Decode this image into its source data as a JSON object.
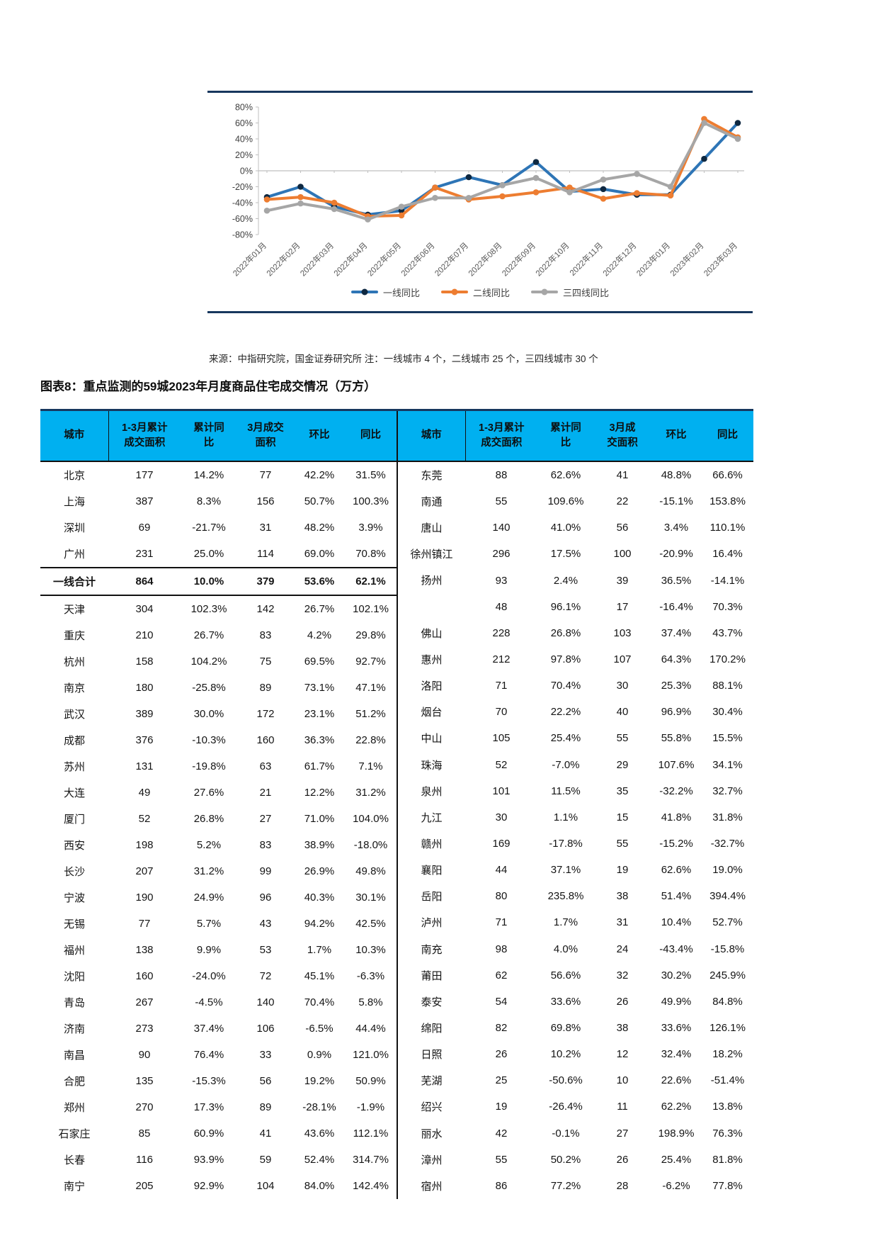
{
  "figure": {
    "source_note": "来源：中指研究院，国金证券研究所 注：一线城市 4 个，二线城市 25 个，三四线城市 30 个"
  },
  "chart_data": {
    "type": "line",
    "x": [
      "2022年01月",
      "2022年02月",
      "2022年03月",
      "2022年04月",
      "2022年05月",
      "2022年06月",
      "2022年07月",
      "2022年08月",
      "2022年09月",
      "2022年10月",
      "2022年11月",
      "2022年12月",
      "2023年01月",
      "2023年02月",
      "2023年03月"
    ],
    "series": [
      {
        "name": "一线同比",
        "color": "#2E75B6",
        "marker": "#0E2841",
        "values": [
          -33,
          -20,
          -45,
          -55,
          -50,
          -21,
          -8,
          -18,
          11,
          -26,
          -23,
          -30,
          -30,
          15,
          60
        ]
      },
      {
        "name": "二线同比",
        "color": "#ED7D31",
        "marker": "#ED7D31",
        "values": [
          -36,
          -33,
          -40,
          -57,
          -56,
          -21,
          -36,
          -32,
          -27,
          -21,
          -35,
          -28,
          -31,
          65,
          42
        ]
      },
      {
        "name": "三四线同比",
        "color": "#A6A6A6",
        "marker": "#A6A6A6",
        "values": [
          -50,
          -41,
          -48,
          -61,
          -45,
          -34,
          -34,
          -18,
          -9,
          -27,
          -11,
          -4,
          -20,
          60,
          40
        ]
      }
    ],
    "ylim": [
      -80,
      80
    ],
    "ytick_step": 20,
    "ytick_suffix": "%",
    "grid": false,
    "legend_position": "bottom"
  },
  "table": {
    "title": "图表8：重点监测的59城2023年月度商品住宅成交情况（万方）",
    "left_headers": [
      "城市",
      "1-3月累计\n成交面积",
      "累计同\n比",
      "3月成交\n面积",
      "环比",
      "同比"
    ],
    "right_headers": [
      "城市",
      "1-3月累计\n成交面积",
      "累计同\n比",
      "3月成\n交面积",
      "环比",
      "同比"
    ],
    "left_rows": [
      [
        "北京",
        "177",
        "14.2%",
        "77",
        "42.2%",
        "31.5%"
      ],
      [
        "上海",
        "387",
        "8.3%",
        "156",
        "50.7%",
        "100.3%"
      ],
      [
        "深圳",
        "69",
        "-21.7%",
        "31",
        "48.2%",
        "3.9%"
      ],
      [
        "广州",
        "231",
        "25.0%",
        "114",
        "69.0%",
        "70.8%"
      ],
      [
        "一线合计",
        "864",
        "10.0%",
        "379",
        "53.6%",
        "62.1%"
      ],
      [
        "天津",
        "304",
        "102.3%",
        "142",
        "26.7%",
        "102.1%"
      ],
      [
        "重庆",
        "210",
        "26.7%",
        "83",
        "4.2%",
        "29.8%"
      ],
      [
        "杭州",
        "158",
        "104.2%",
        "75",
        "69.5%",
        "92.7%"
      ],
      [
        "南京",
        "180",
        "-25.8%",
        "89",
        "73.1%",
        "47.1%"
      ],
      [
        "武汉",
        "389",
        "30.0%",
        "172",
        "23.1%",
        "51.2%"
      ],
      [
        "成都",
        "376",
        "-10.3%",
        "160",
        "36.3%",
        "22.8%"
      ],
      [
        "苏州",
        "131",
        "-19.8%",
        "63",
        "61.7%",
        "7.1%"
      ],
      [
        "大连",
        "49",
        "27.6%",
        "21",
        "12.2%",
        "31.2%"
      ],
      [
        "厦门",
        "52",
        "26.8%",
        "27",
        "71.0%",
        "104.0%"
      ],
      [
        "西安",
        "198",
        "5.2%",
        "83",
        "38.9%",
        "-18.0%"
      ],
      [
        "长沙",
        "207",
        "31.2%",
        "99",
        "26.9%",
        "49.8%"
      ],
      [
        "宁波",
        "190",
        "24.9%",
        "96",
        "40.3%",
        "30.1%"
      ],
      [
        "无锡",
        "77",
        "5.7%",
        "43",
        "94.2%",
        "42.5%"
      ],
      [
        "福州",
        "138",
        "9.9%",
        "53",
        "1.7%",
        "10.3%"
      ],
      [
        "沈阳",
        "160",
        "-24.0%",
        "72",
        "45.1%",
        "-6.3%"
      ],
      [
        "青岛",
        "267",
        "-4.5%",
        "140",
        "70.4%",
        "5.8%"
      ],
      [
        "济南",
        "273",
        "37.4%",
        "106",
        "-6.5%",
        "44.4%"
      ],
      [
        "南昌",
        "90",
        "76.4%",
        "33",
        "0.9%",
        "121.0%"
      ],
      [
        "合肥",
        "135",
        "-15.3%",
        "56",
        "19.2%",
        "50.9%"
      ],
      [
        "郑州",
        "270",
        "17.3%",
        "89",
        "-28.1%",
        "-1.9%"
      ],
      [
        "石家庄",
        "85",
        "60.9%",
        "41",
        "43.6%",
        "112.1%"
      ],
      [
        "长春",
        "116",
        "93.9%",
        "59",
        "52.4%",
        "314.7%"
      ],
      [
        "南宁",
        "205",
        "92.9%",
        "104",
        "84.0%",
        "142.4%"
      ]
    ],
    "left_total_row_index": 4,
    "right_rows": [
      [
        "东莞",
        "88",
        "62.6%",
        "41",
        "48.8%",
        "66.6%"
      ],
      [
        "南通",
        "55",
        "109.6%",
        "22",
        "-15.1%",
        "153.8%"
      ],
      [
        "唐山",
        "140",
        "41.0%",
        "56",
        "3.4%",
        "110.1%"
      ],
      [
        "徐州镇江扬州",
        "296",
        "17.5%",
        "100",
        "-20.9%",
        "16.4%"
      ],
      [
        null,
        "93",
        "2.4%",
        "39",
        "36.5%",
        "-14.1%"
      ],
      [
        "",
        "48",
        "96.1%",
        "17",
        "-16.4%",
        "70.3%"
      ],
      [
        "佛山",
        "228",
        "26.8%",
        "103",
        "37.4%",
        "43.7%"
      ],
      [
        "惠州",
        "212",
        "97.8%",
        "107",
        "64.3%",
        "170.2%"
      ],
      [
        "洛阳",
        "71",
        "70.4%",
        "30",
        "25.3%",
        "88.1%"
      ],
      [
        "烟台",
        "70",
        "22.2%",
        "40",
        "96.9%",
        "30.4%"
      ],
      [
        "中山",
        "105",
        "25.4%",
        "55",
        "55.8%",
        "15.5%"
      ],
      [
        "珠海",
        "52",
        "-7.0%",
        "29",
        "107.6%",
        "34.1%"
      ],
      [
        "泉州",
        "101",
        "11.5%",
        "35",
        "-32.2%",
        "32.7%"
      ],
      [
        "九江",
        "30",
        "1.1%",
        "15",
        "41.8%",
        "31.8%"
      ],
      [
        "赣州",
        "169",
        "-17.8%",
        "55",
        "-15.2%",
        "-32.7%"
      ],
      [
        "襄阳",
        "44",
        "37.1%",
        "19",
        "62.6%",
        "19.0%"
      ],
      [
        "岳阳",
        "80",
        "235.8%",
        "38",
        "51.4%",
        "394.4%"
      ],
      [
        "泸州",
        "71",
        "1.7%",
        "31",
        "10.4%",
        "52.7%"
      ],
      [
        "南充",
        "98",
        "4.0%",
        "24",
        "-43.4%",
        "-15.8%"
      ],
      [
        "莆田",
        "62",
        "56.6%",
        "32",
        "30.2%",
        "245.9%"
      ],
      [
        "泰安",
        "54",
        "33.6%",
        "26",
        "49.9%",
        "84.8%"
      ],
      [
        "绵阳",
        "82",
        "69.8%",
        "38",
        "33.6%",
        "126.1%"
      ],
      [
        "日照",
        "26",
        "10.2%",
        "12",
        "32.4%",
        "18.2%"
      ],
      [
        "芜湖",
        "25",
        "-50.6%",
        "10",
        "22.6%",
        "-51.4%"
      ],
      [
        "绍兴",
        "19",
        "-26.4%",
        "11",
        "62.2%",
        "13.8%"
      ],
      [
        "丽水",
        "42",
        "-0.1%",
        "27",
        "198.9%",
        "76.3%"
      ],
      [
        "漳州",
        "55",
        "50.2%",
        "26",
        "25.4%",
        "81.8%"
      ],
      [
        "宿州",
        "86",
        "77.2%",
        "28",
        "-6.2%",
        "77.8%"
      ]
    ]
  }
}
